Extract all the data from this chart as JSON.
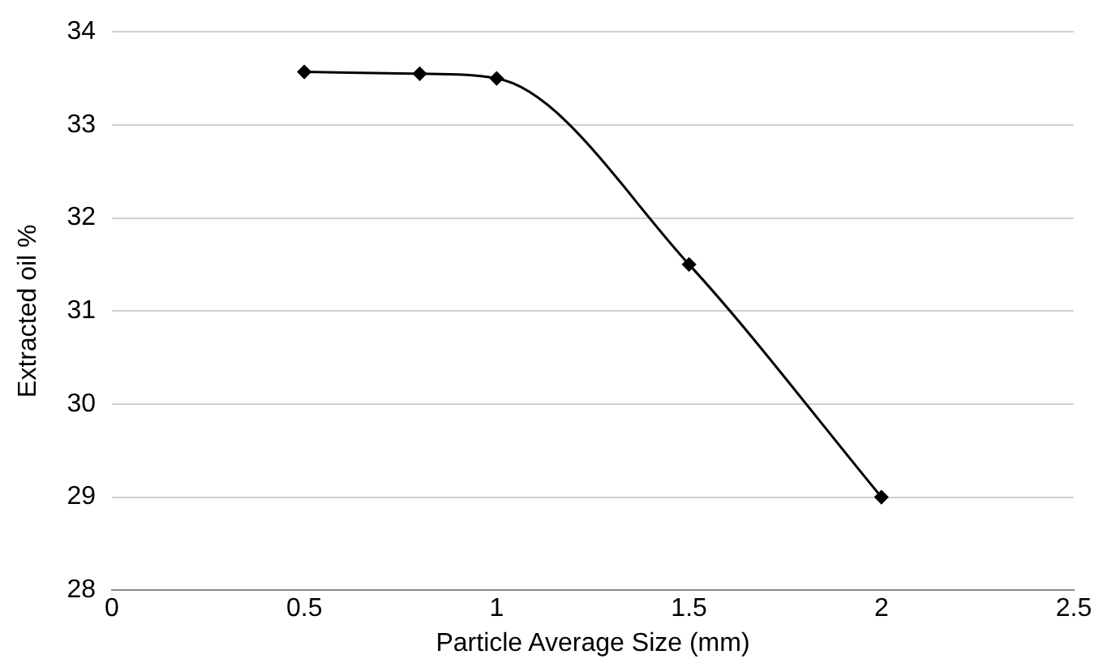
{
  "chart_data": {
    "type": "line",
    "xlabel": "Particle Average Size (mm)",
    "ylabel": "Extracted oil %",
    "x": [
      0.5,
      0.8,
      1,
      1.5,
      2
    ],
    "series": [
      {
        "color": "#000000",
        "values": [
          33.57,
          33.55,
          33.5,
          31.5,
          29
        ]
      }
    ],
    "xlim": [
      0,
      2.5
    ],
    "xticks": [
      0,
      0.5,
      1,
      1.5,
      2,
      2.5
    ],
    "ylim": [
      28,
      34
    ],
    "yticks": [
      28,
      29,
      30,
      31,
      32,
      33,
      34
    ],
    "grid": "y",
    "legend": false,
    "marker": "diamond",
    "line_style": "solid"
  }
}
